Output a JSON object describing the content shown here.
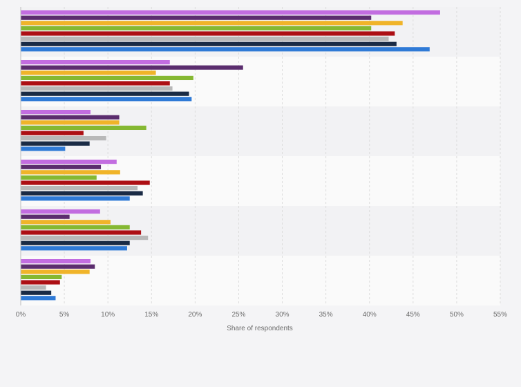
{
  "chart_data": {
    "type": "bar",
    "orientation": "horizontal",
    "title": "",
    "xlabel": "Share of respondents",
    "ylabel": "",
    "xlim": [
      0,
      55
    ],
    "x_ticks": [
      0,
      5,
      10,
      15,
      20,
      25,
      30,
      35,
      40,
      45,
      50,
      55
    ],
    "x_tick_labels": [
      "0%",
      "5%",
      "10%",
      "15%",
      "20%",
      "25%",
      "30%",
      "35%",
      "40%",
      "45%",
      "50%",
      "55%"
    ],
    "grid": true,
    "legend": "none",
    "categories": [
      "",
      "",
      "",
      "",
      "",
      ""
    ],
    "series": [
      {
        "color": "#c26de0",
        "values": [
          48.1,
          17.1,
          8.0,
          11.0,
          9.1,
          8.0
        ]
      },
      {
        "color": "#5b2d6e",
        "values": [
          40.2,
          25.5,
          11.3,
          9.2,
          5.6,
          8.5
        ]
      },
      {
        "color": "#f0b429",
        "values": [
          43.8,
          15.5,
          11.3,
          11.4,
          10.3,
          7.9
        ]
      },
      {
        "color": "#85b832",
        "values": [
          40.2,
          19.8,
          14.4,
          8.7,
          12.5,
          4.7
        ]
      },
      {
        "color": "#ad0f14",
        "values": [
          42.9,
          17.1,
          7.2,
          14.8,
          13.8,
          4.5
        ]
      },
      {
        "color": "#b8b8b8",
        "values": [
          42.2,
          17.4,
          9.8,
          13.4,
          14.6,
          2.9
        ]
      },
      {
        "color": "#1a2b45",
        "values": [
          43.1,
          19.3,
          7.9,
          14.0,
          12.5,
          3.5
        ]
      },
      {
        "color": "#2f7ad6",
        "values": [
          46.9,
          19.6,
          5.1,
          12.5,
          12.2,
          4.0
        ]
      }
    ]
  }
}
